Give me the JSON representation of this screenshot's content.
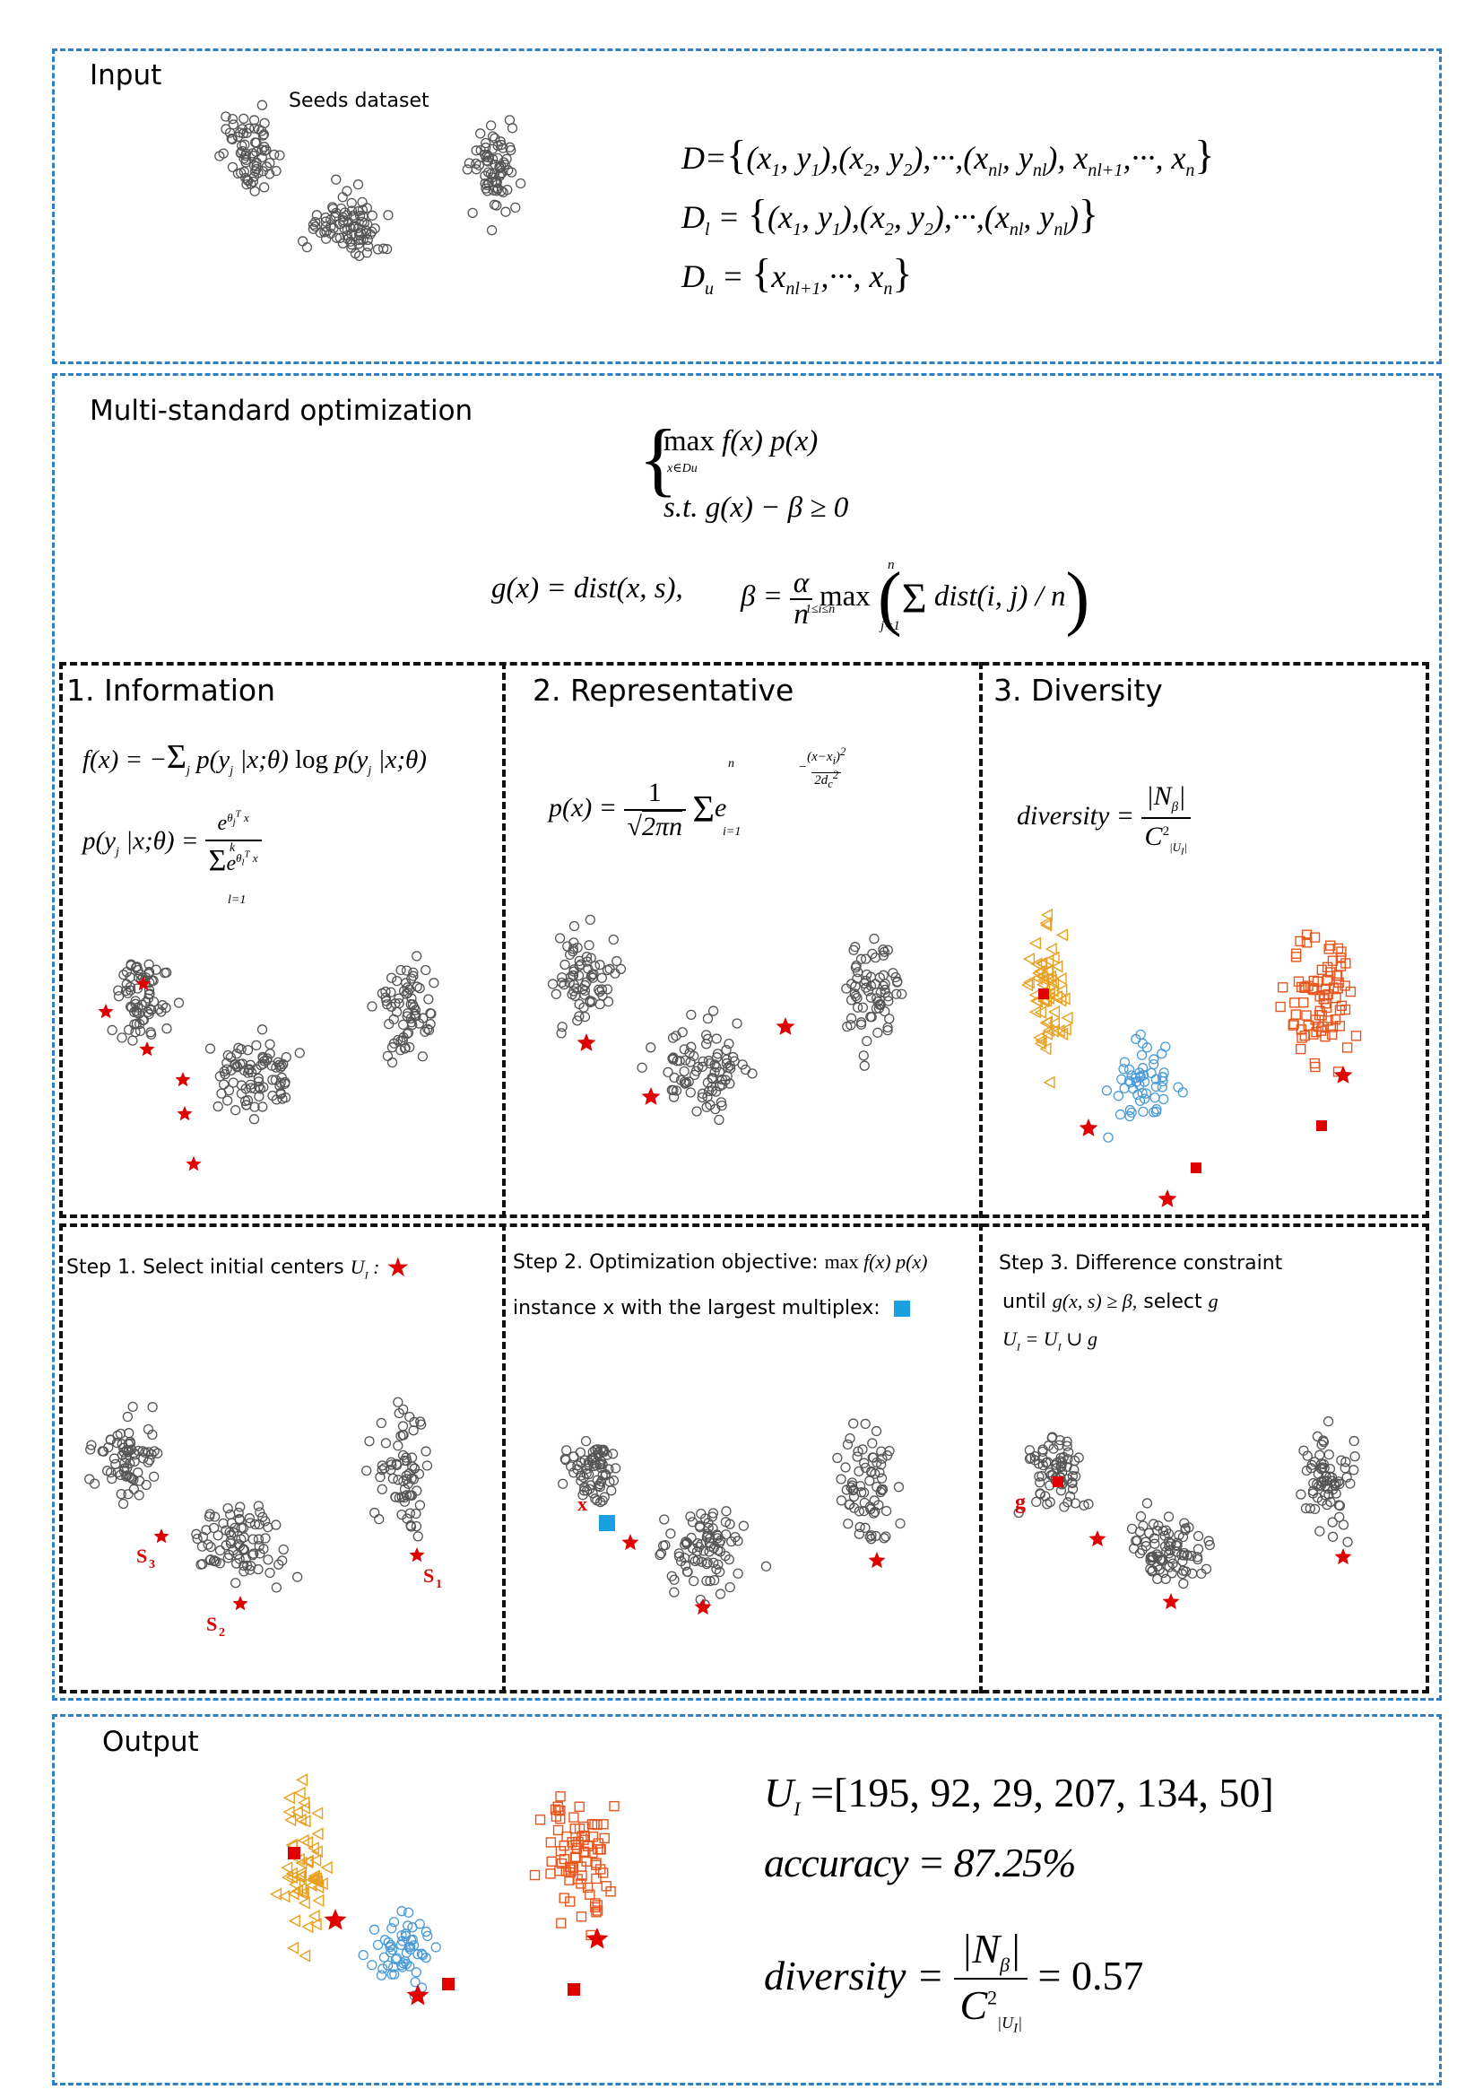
{
  "colors": {
    "blue_border": "#2f7fc4",
    "black_border": "#111111",
    "point": "#555555",
    "star": "#e00000",
    "orange": "#e8561e",
    "yellow": "#e8a020",
    "blue": "#4a9ad8",
    "cyan": "#1aa0e0"
  },
  "input": {
    "title": "Input",
    "scatter_title": "Seeds dataset",
    "eq_d": "D={(x1, y1),(x2, y2),⋯,(xnl, ynl), xnl+1,⋯, xn}",
    "eq_dl": "Dl = {(x1, y1),(x2, y2),⋯,(xnl, ynl)}",
    "eq_du": "Du = {xnl+1,⋯, xn}"
  },
  "optimization": {
    "title": "Multi-standard optimization",
    "objective": "max f(x) p(x)",
    "objective_sub": "x∈Du",
    "constraint": "s.t. g(x) − β ≥ 0",
    "g_def": "g(x) = dist(x, s),",
    "beta_def": "β = α/n max(Σ dist(i, j) / n)",
    "beta_sub": "1≤i≤n",
    "sum_sub": "j=1",
    "sum_sup": "n"
  },
  "panels": [
    {
      "title": "1. Information",
      "eq1": "f(x) = −Σ p(yj|x;θ) log p(yj|x;θ)",
      "eq2": "p(yj|x;θ) = e^(θjT x) / Σ e^(θlT x)"
    },
    {
      "title": "2. Representative",
      "eq1": "p(x) = 1/√(2πn) Σ e^(−(x−xi)²/2dc²)"
    },
    {
      "title": "3. Diversity",
      "eq1": "diversity = |Nβ| / C²|UI|"
    }
  ],
  "steps": [
    {
      "line1": "Step 1.  Select initial centers",
      "math1": "UI :",
      "labels": [
        "S1",
        "S2",
        "S3"
      ]
    },
    {
      "line1": "Step 2. Optimization objective:",
      "math1": "max f(x) p(x)",
      "line2": "instance x with the largest multiplex:",
      "label": "x"
    },
    {
      "line1": "Step 3. Difference constraint",
      "line2a": "until",
      "math2": "g(x, s) ≥ β,",
      "line2b": "select",
      "math2b": "g",
      "math3": "UI = UI ∪ g",
      "label": "g"
    }
  ],
  "output": {
    "title": "Output",
    "ui": "UI =[195, 92, 29, 207, 134, 50]",
    "accuracy": "accuracy = 87.25%",
    "diversity": "diversity = |Nβ| / C²|UI| = 0.57"
  }
}
